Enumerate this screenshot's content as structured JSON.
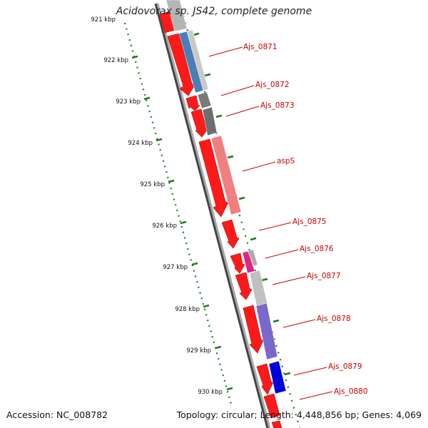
{
  "title": "Acidovorax sp. JS42, complete genome",
  "footer": {
    "accession": "Accession: NC_008782",
    "topology": "Topology: circular; Length: 4,448,856 bp; Genes: 4,069"
  },
  "colors": {
    "gene_arrow": "#ff0000",
    "backbone": "#9a9a9a",
    "tick": "#1e7a1e",
    "label": "#cc0000"
  },
  "scale_labels": [
    "921 kbp",
    "922 kbp",
    "923 kbp",
    "924 kbp",
    "925 kbp",
    "926 kbp",
    "927 kbp",
    "928 kbp",
    "929 kbp",
    "930 kbp"
  ],
  "gene_labels": [
    "Ajs_0871",
    "Ajs_0872",
    "Ajs_0873",
    "aspS",
    "Ajs_0875",
    "Ajs_0876",
    "Ajs_0877",
    "Ajs_0878",
    "Ajs_0879",
    "Ajs_0880"
  ]
}
